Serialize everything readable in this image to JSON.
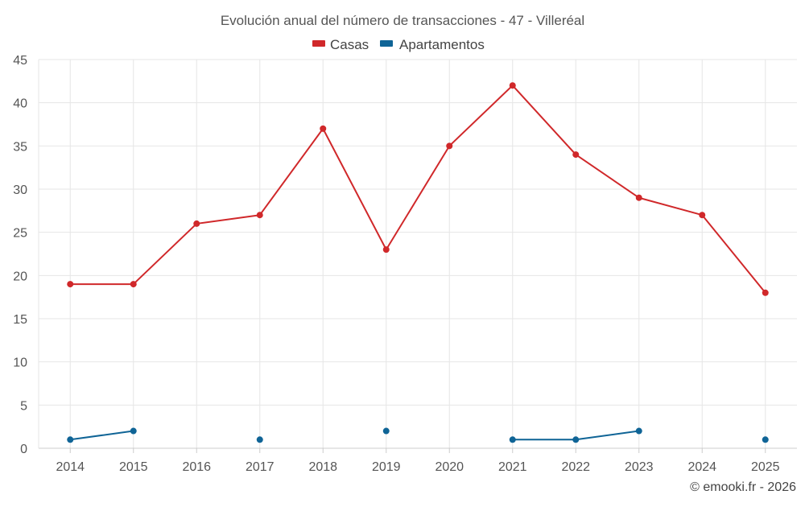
{
  "chart_data": {
    "type": "line",
    "title": "Evolución anual del número de transacciones - 47 - Villeréal",
    "categories": [
      "2014",
      "2015",
      "2016",
      "2017",
      "2018",
      "2019",
      "2020",
      "2021",
      "2022",
      "2023",
      "2024",
      "2025"
    ],
    "series": [
      {
        "name": "Casas",
        "color": "#d0282a",
        "values": [
          19,
          19,
          26,
          27,
          37,
          23,
          35,
          42,
          34,
          29,
          27,
          18
        ]
      },
      {
        "name": "Apartamentos",
        "color": "#0f6496",
        "values": [
          1,
          2,
          null,
          1,
          null,
          2,
          null,
          1,
          1,
          2,
          null,
          1
        ]
      }
    ],
    "ylim": [
      0,
      45
    ],
    "yticks": [
      0,
      5,
      10,
      15,
      20,
      25,
      30,
      35,
      40,
      45
    ],
    "xlabel": "",
    "ylabel": "",
    "grid": true,
    "legend_position": "top-center"
  },
  "credit": "© emooki.fr - 2026"
}
